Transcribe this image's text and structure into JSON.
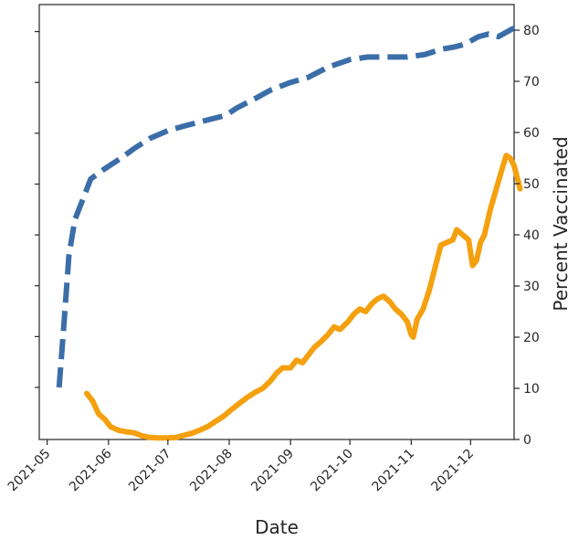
{
  "chart_data": {
    "type": "line",
    "xlabel": "Date",
    "y2label": "Percent Vaccinated",
    "x_ticks": [
      "2021-05",
      "2021-06",
      "2021-07",
      "2021-08",
      "2021-09",
      "2021-10",
      "2021-11",
      "2021-12"
    ],
    "y2_ticks": [
      0,
      10,
      20,
      30,
      40,
      50,
      60,
      70,
      80
    ],
    "y2lim": [
      0,
      85
    ],
    "xlim": [
      "2021-04-27",
      "2021-12-23"
    ],
    "grid": false,
    "series": [
      {
        "color": "#3b6ea8",
        "style": "dashed",
        "axis": "left",
        "points": [
          [
            "2021-05-07",
            10
          ],
          [
            "2021-05-09",
            20
          ],
          [
            "2021-05-12",
            36
          ],
          [
            "2021-05-15",
            43
          ],
          [
            "2021-05-19",
            47
          ],
          [
            "2021-05-23",
            51
          ],
          [
            "2021-05-30",
            53
          ],
          [
            "2021-06-07",
            55
          ],
          [
            "2021-06-14",
            57
          ],
          [
            "2021-06-22",
            59
          ],
          [
            "2021-07-01",
            60.5
          ],
          [
            "2021-07-10",
            61.5
          ],
          [
            "2021-07-20",
            62.5
          ],
          [
            "2021-07-30",
            63.5
          ],
          [
            "2021-08-05",
            65
          ],
          [
            "2021-08-15",
            67
          ],
          [
            "2021-08-22",
            68.5
          ],
          [
            "2021-09-01",
            70
          ],
          [
            "2021-09-10",
            71
          ],
          [
            "2021-09-20",
            73
          ],
          [
            "2021-10-01",
            74.5
          ],
          [
            "2021-10-10",
            75
          ],
          [
            "2021-10-20",
            75
          ],
          [
            "2021-10-30",
            75
          ],
          [
            "2021-11-08",
            75.5
          ],
          [
            "2021-11-16",
            76.5
          ],
          [
            "2021-11-23",
            77
          ],
          [
            "2021-11-28",
            77.5
          ],
          [
            "2021-12-05",
            79
          ],
          [
            "2021-12-10",
            79.5
          ],
          [
            "2021-12-15",
            79
          ],
          [
            "2021-12-22",
            80.5
          ],
          [
            "2021-12-26",
            81
          ]
        ]
      },
      {
        "color": "#f5a00f",
        "style": "solid",
        "axis": "right",
        "points": [
          [
            "2021-05-21",
            9
          ],
          [
            "2021-05-24",
            7.5
          ],
          [
            "2021-05-27",
            5
          ],
          [
            "2021-05-30",
            4
          ],
          [
            "2021-06-02",
            2.5
          ],
          [
            "2021-06-06",
            1.8
          ],
          [
            "2021-06-10",
            1.5
          ],
          [
            "2021-06-14",
            1.3
          ],
          [
            "2021-06-18",
            0.7
          ],
          [
            "2021-06-22",
            0.4
          ],
          [
            "2021-06-26",
            0.3
          ],
          [
            "2021-07-01",
            0.3
          ],
          [
            "2021-07-05",
            0.4
          ],
          [
            "2021-07-09",
            0.8
          ],
          [
            "2021-07-13",
            1.2
          ],
          [
            "2021-07-17",
            1.8
          ],
          [
            "2021-07-21",
            2.5
          ],
          [
            "2021-07-25",
            3.5
          ],
          [
            "2021-07-29",
            4.5
          ],
          [
            "2021-08-02",
            5.8
          ],
          [
            "2021-08-06",
            7
          ],
          [
            "2021-08-10",
            8.2
          ],
          [
            "2021-08-14",
            9.2
          ],
          [
            "2021-08-18",
            10
          ],
          [
            "2021-08-22",
            11.5
          ],
          [
            "2021-08-25",
            13
          ],
          [
            "2021-08-28",
            14
          ],
          [
            "2021-09-01",
            14
          ],
          [
            "2021-09-04",
            15.5
          ],
          [
            "2021-09-07",
            15
          ],
          [
            "2021-09-10",
            16.5
          ],
          [
            "2021-09-13",
            18
          ],
          [
            "2021-09-16",
            19
          ],
          [
            "2021-09-20",
            20.5
          ],
          [
            "2021-09-23",
            22
          ],
          [
            "2021-09-26",
            21.5
          ],
          [
            "2021-09-30",
            23
          ],
          [
            "2021-10-03",
            24.5
          ],
          [
            "2021-10-06",
            25.5
          ],
          [
            "2021-10-09",
            25
          ],
          [
            "2021-10-12",
            26.5
          ],
          [
            "2021-10-15",
            27.5
          ],
          [
            "2021-10-18",
            28
          ],
          [
            "2021-10-21",
            27
          ],
          [
            "2021-10-24",
            25.5
          ],
          [
            "2021-10-27",
            24.5
          ],
          [
            "2021-10-30",
            23
          ],
          [
            "2021-11-01",
            20.5
          ],
          [
            "2021-11-02",
            20
          ],
          [
            "2021-11-04",
            23.5
          ],
          [
            "2021-11-07",
            25.5
          ],
          [
            "2021-11-10",
            29
          ],
          [
            "2021-11-13",
            33.5
          ],
          [
            "2021-11-16",
            38
          ],
          [
            "2021-11-19",
            38.5
          ],
          [
            "2021-11-22",
            39
          ],
          [
            "2021-11-24",
            41
          ],
          [
            "2021-11-27",
            40
          ],
          [
            "2021-11-30",
            39
          ],
          [
            "2021-12-02",
            34
          ],
          [
            "2021-12-04",
            35
          ],
          [
            "2021-12-06",
            38.5
          ],
          [
            "2021-12-08",
            40
          ],
          [
            "2021-12-11",
            45
          ],
          [
            "2021-12-14",
            49
          ],
          [
            "2021-12-17",
            53
          ],
          [
            "2021-12-19",
            55.5
          ],
          [
            "2021-12-21",
            55
          ],
          [
            "2021-12-23",
            53.5
          ],
          [
            "2021-12-26",
            49
          ]
        ]
      }
    ]
  }
}
